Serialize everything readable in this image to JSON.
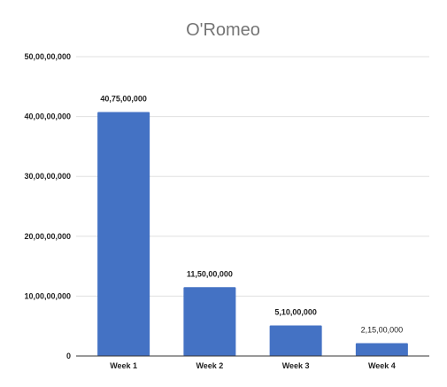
{
  "chart_data": {
    "type": "bar",
    "title": "O'Romeo",
    "xlabel": "",
    "ylabel": "",
    "categories": [
      "Week 1",
      "Week 2",
      "Week 3",
      "Week 4"
    ],
    "values": [
      407500000,
      115000000,
      51000000,
      21500000
    ],
    "data_labels": [
      "40,75,00,000",
      "11,50,00,000",
      "5,10,00,000",
      "2,15,00,000"
    ],
    "ylim": [
      0,
      500000000
    ],
    "yticks": [
      0,
      100000000,
      200000000,
      300000000,
      400000000,
      500000000
    ],
    "ytick_labels": [
      "0",
      "10,00,00,000",
      "20,00,00,000",
      "30,00,00,000",
      "40,00,00,000",
      "50,00,00,000"
    ],
    "grid": true,
    "legend": "none",
    "bar_color": "#4472c4"
  }
}
